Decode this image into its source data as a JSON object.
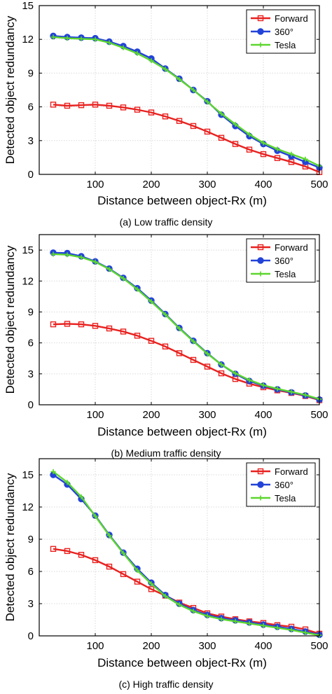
{
  "chart_data": [
    {
      "type": "line",
      "caption": "(a) Low traffic density",
      "xlabel": "Distance between object-Rx (m)",
      "ylabel": "Detected object redundancy",
      "xlim": [
        0,
        500
      ],
      "ylim": [
        0,
        15
      ],
      "xticks": [
        "100",
        "200",
        "300",
        "400",
        "500"
      ],
      "yticks": [
        "0",
        "3",
        "6",
        "9",
        "12",
        "15"
      ],
      "grid": true,
      "legend_position": "top-right",
      "x": [
        25,
        50,
        75,
        100,
        125,
        150,
        175,
        200,
        225,
        250,
        275,
        300,
        325,
        350,
        375,
        400,
        425,
        450,
        475,
        500
      ],
      "series": [
        {
          "name": "Forward",
          "color": "#e8211f",
          "marker": "square",
          "values": [
            6.2,
            6.1,
            6.15,
            6.2,
            6.1,
            5.95,
            5.75,
            5.5,
            5.15,
            4.75,
            4.3,
            3.8,
            3.25,
            2.7,
            2.2,
            1.8,
            1.45,
            1.1,
            0.7,
            0.2
          ]
        },
        {
          "name": "360°",
          "color": "#2343d8",
          "marker": "circle",
          "values": [
            12.3,
            12.2,
            12.15,
            12.1,
            11.8,
            11.4,
            10.9,
            10.3,
            9.4,
            8.5,
            7.5,
            6.5,
            5.3,
            4.3,
            3.4,
            2.7,
            2.1,
            1.6,
            1.1,
            0.6
          ]
        },
        {
          "name": "Tesla",
          "color": "#5cd62e",
          "marker": "plus",
          "values": [
            12.2,
            12.1,
            12.05,
            12.0,
            11.7,
            11.25,
            10.75,
            10.1,
            9.35,
            8.45,
            7.5,
            6.45,
            5.4,
            4.45,
            3.55,
            2.8,
            2.25,
            1.8,
            1.35,
            0.75
          ]
        }
      ]
    },
    {
      "type": "line",
      "caption": "(b) Medium traffic density",
      "xlabel": "Distance between object-Rx (m)",
      "ylabel": "Detected object redundancy",
      "xlim": [
        0,
        500
      ],
      "ylim": [
        0,
        16.5
      ],
      "xticks": [
        "100",
        "200",
        "300",
        "400",
        "500"
      ],
      "yticks": [
        "0",
        "3",
        "6",
        "9",
        "12",
        "15"
      ],
      "grid": true,
      "legend_position": "top-right",
      "x": [
        25,
        50,
        75,
        100,
        125,
        150,
        175,
        200,
        225,
        250,
        275,
        300,
        325,
        350,
        375,
        400,
        425,
        450,
        475,
        500
      ],
      "series": [
        {
          "name": "Forward",
          "color": "#e8211f",
          "marker": "square",
          "values": [
            7.8,
            7.85,
            7.8,
            7.65,
            7.4,
            7.1,
            6.7,
            6.2,
            5.65,
            5.0,
            4.35,
            3.7,
            3.05,
            2.5,
            2.05,
            1.7,
            1.4,
            1.15,
            0.85,
            0.45
          ]
        },
        {
          "name": "360°",
          "color": "#2343d8",
          "marker": "circle",
          "values": [
            14.75,
            14.7,
            14.4,
            13.9,
            13.2,
            12.3,
            11.3,
            10.1,
            8.8,
            7.45,
            6.2,
            5.0,
            3.9,
            3.0,
            2.3,
            1.85,
            1.5,
            1.2,
            0.9,
            0.5
          ]
        },
        {
          "name": "Tesla",
          "color": "#5cd62e",
          "marker": "plus",
          "values": [
            14.6,
            14.55,
            14.3,
            13.85,
            13.15,
            12.25,
            11.2,
            10.0,
            8.75,
            7.4,
            6.15,
            4.95,
            3.9,
            3.05,
            2.4,
            1.9,
            1.55,
            1.25,
            0.95,
            0.55
          ]
        }
      ]
    },
    {
      "type": "line",
      "caption": "(c) High traffic density",
      "xlabel": "Distance between object-Rx (m)",
      "ylabel": "Detected object redundancy",
      "xlim": [
        0,
        500
      ],
      "ylim": [
        0,
        16.5
      ],
      "xticks": [
        "100",
        "200",
        "300",
        "400",
        "500"
      ],
      "yticks": [
        "0",
        "3",
        "6",
        "9",
        "12",
        "15"
      ],
      "grid": true,
      "legend_position": "top-right",
      "x": [
        25,
        50,
        75,
        100,
        125,
        150,
        175,
        200,
        225,
        250,
        275,
        300,
        325,
        350,
        375,
        400,
        425,
        450,
        475,
        500
      ],
      "series": [
        {
          "name": "Forward",
          "color": "#e8211f",
          "marker": "square",
          "values": [
            8.1,
            7.9,
            7.55,
            7.05,
            6.45,
            5.75,
            5.05,
            4.35,
            3.75,
            3.1,
            2.6,
            2.1,
            1.8,
            1.55,
            1.35,
            1.2,
            1.0,
            0.85,
            0.6,
            0.2
          ]
        },
        {
          "name": "360°",
          "color": "#2343d8",
          "marker": "circle",
          "values": [
            15.0,
            14.1,
            12.75,
            11.2,
            9.4,
            7.75,
            6.25,
            4.95,
            3.8,
            3.0,
            2.4,
            1.95,
            1.65,
            1.45,
            1.25,
            1.05,
            0.85,
            0.65,
            0.4,
            0.1
          ]
        },
        {
          "name": "Tesla",
          "color": "#5cd62e",
          "marker": "plus",
          "values": [
            15.3,
            14.3,
            12.95,
            11.15,
            9.35,
            7.7,
            6.1,
            4.85,
            3.7,
            2.9,
            2.3,
            1.85,
            1.55,
            1.35,
            1.15,
            0.95,
            0.75,
            0.55,
            0.3,
            0.05
          ]
        }
      ]
    }
  ]
}
